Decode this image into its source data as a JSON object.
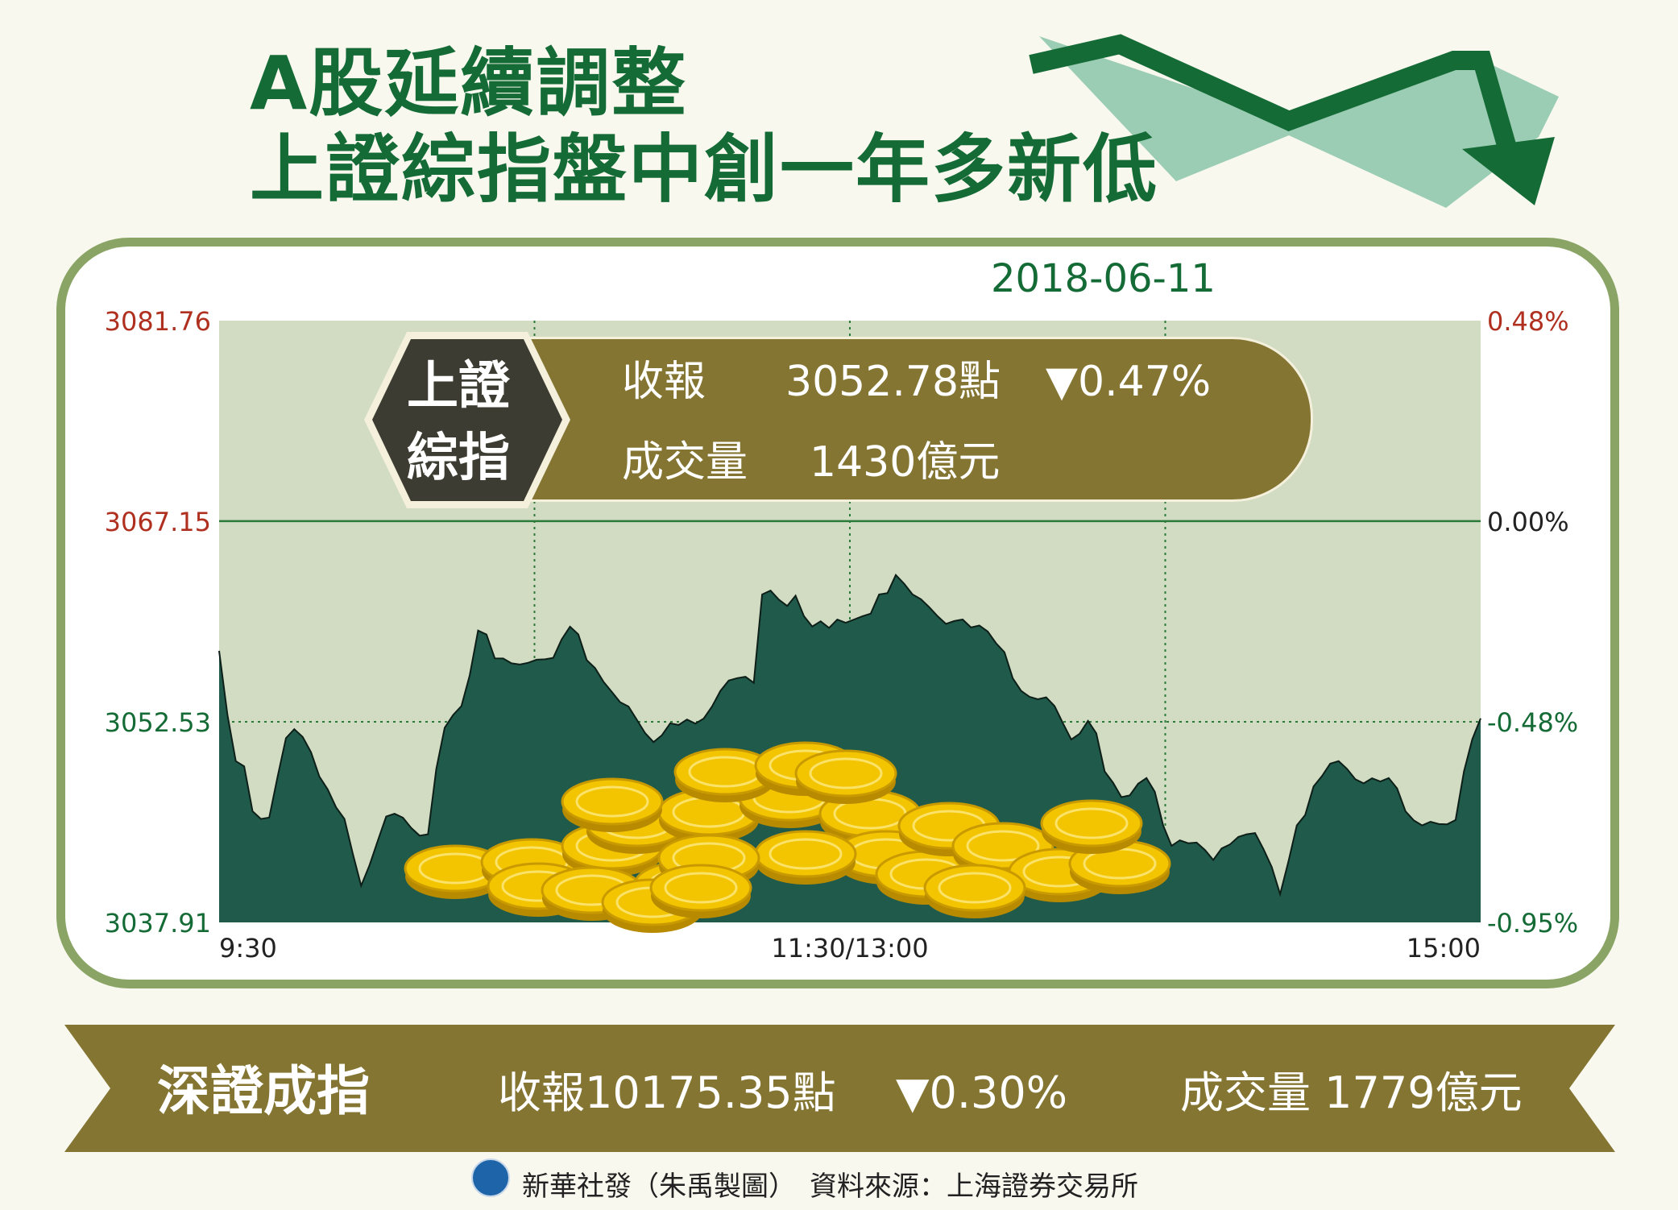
{
  "title": {
    "line1": "A股延續調整",
    "line2": "上證綜指盤中創一年多新低"
  },
  "date": "2018-06-11",
  "colors": {
    "title_green": "#156b36",
    "area_fill": "#1f5a4a",
    "plot_bg": "#d1dcc2",
    "frame": "#8aa466",
    "olive": "#847532",
    "negative_red": "#b03020",
    "coins": "#f2c500"
  },
  "shanghai_box": {
    "badge_line1": "上證",
    "badge_line2": "綜指",
    "close_label": "收報",
    "close_value": "3052.78點",
    "change": "▼0.47%",
    "volume_label": "成交量",
    "volume_value": "1430億元"
  },
  "shenzhen_banner": {
    "name": "深證成指",
    "close": "收報10175.35點",
    "change": "▼0.30%",
    "volume": "成交量  1779億元"
  },
  "footer": {
    "text": "新華社發（朱禹製圖）　資料來源：上海證券交易所",
    "logo_icon": "xinhua-logo-icon"
  },
  "chart_data": {
    "type": "area",
    "ylim": [
      3037.91,
      3081.76
    ],
    "y_ticks_left": [
      "3081.76",
      "3067.15",
      "3052.53",
      "3037.91"
    ],
    "y_ticks_right": [
      "0.48%",
      "0.00%",
      "-0.48%",
      "-0.95%"
    ],
    "x_tick_labels": [
      "9:30",
      "11:30/13:00",
      "15:00"
    ],
    "reference_close": 3067.15,
    "grid": true,
    "series": [
      {
        "values": [
          3057.7,
          3053.02,
          3049.66,
          3049.28,
          3046.01,
          3045.45,
          3045.55,
          3048.53,
          3051.34,
          3051.99,
          3051.43,
          3050.31,
          3048.53,
          3047.6,
          3046.29,
          3045.45,
          3042.93,
          3040.58,
          3042.08,
          3043.86,
          3045.63,
          3045.83,
          3045.54,
          3044.79,
          3044.23,
          3044.33,
          3049.1,
          3052.09,
          3053.02,
          3053.68,
          3055.92,
          3059.18,
          3058.89,
          3057.15,
          3057.14,
          3056.79,
          3056.7,
          3056.83,
          3057.05,
          3057.08,
          3057.19,
          3058.53,
          3059.46,
          3058.9,
          3057.03,
          3056.44,
          3055.45,
          3054.71,
          3053.96,
          3053.64,
          3052.68,
          3051.7,
          3051.05,
          3051.55,
          3052.42,
          3052.3,
          3052.69,
          3052.4,
          3052.76,
          3053.64,
          3054.78,
          3055.53,
          3055.71,
          3055.81,
          3055.37,
          3061.81,
          3062.09,
          3061.43,
          3060.97,
          3061.72,
          3060.22,
          3059.47,
          3059.85,
          3059.37,
          3059.98,
          3059.74,
          3059.98,
          3060.22,
          3060.41,
          3061.81,
          3061.91,
          3063.22,
          3062.59,
          3061.81,
          3061.46,
          3060.88,
          3060.22,
          3059.66,
          3059.87,
          3059.98,
          3059.4,
          3059.55,
          3059.11,
          3058.25,
          3057.6,
          3055.7,
          3054.78,
          3054.35,
          3054.17,
          3054.31,
          3053.68,
          3052.42,
          3051.24,
          3051.66,
          3052.6,
          3051.69,
          3048.91,
          3048.09,
          3047.04,
          3047.17,
          3048.01,
          3048.43,
          3047.43,
          3044.98,
          3043.49,
          3043.89,
          3043.68,
          3043.73,
          3043.19,
          3042.46,
          3043.3,
          3043.59,
          3044.14,
          3044.33,
          3044.42,
          3043.26,
          3041.95,
          3039.97,
          3042.37,
          3044.98,
          3045.74,
          3047.82,
          3048.57,
          3049.48,
          3049.66,
          3049.1,
          3048.34,
          3048.04,
          3048.41,
          3048.18,
          3048.43,
          3047.68,
          3046.01,
          3045.35,
          3044.98,
          3045.25,
          3045.08,
          3045.06,
          3045.37,
          3048.91,
          3051.25,
          3052.78
        ]
      }
    ]
  }
}
